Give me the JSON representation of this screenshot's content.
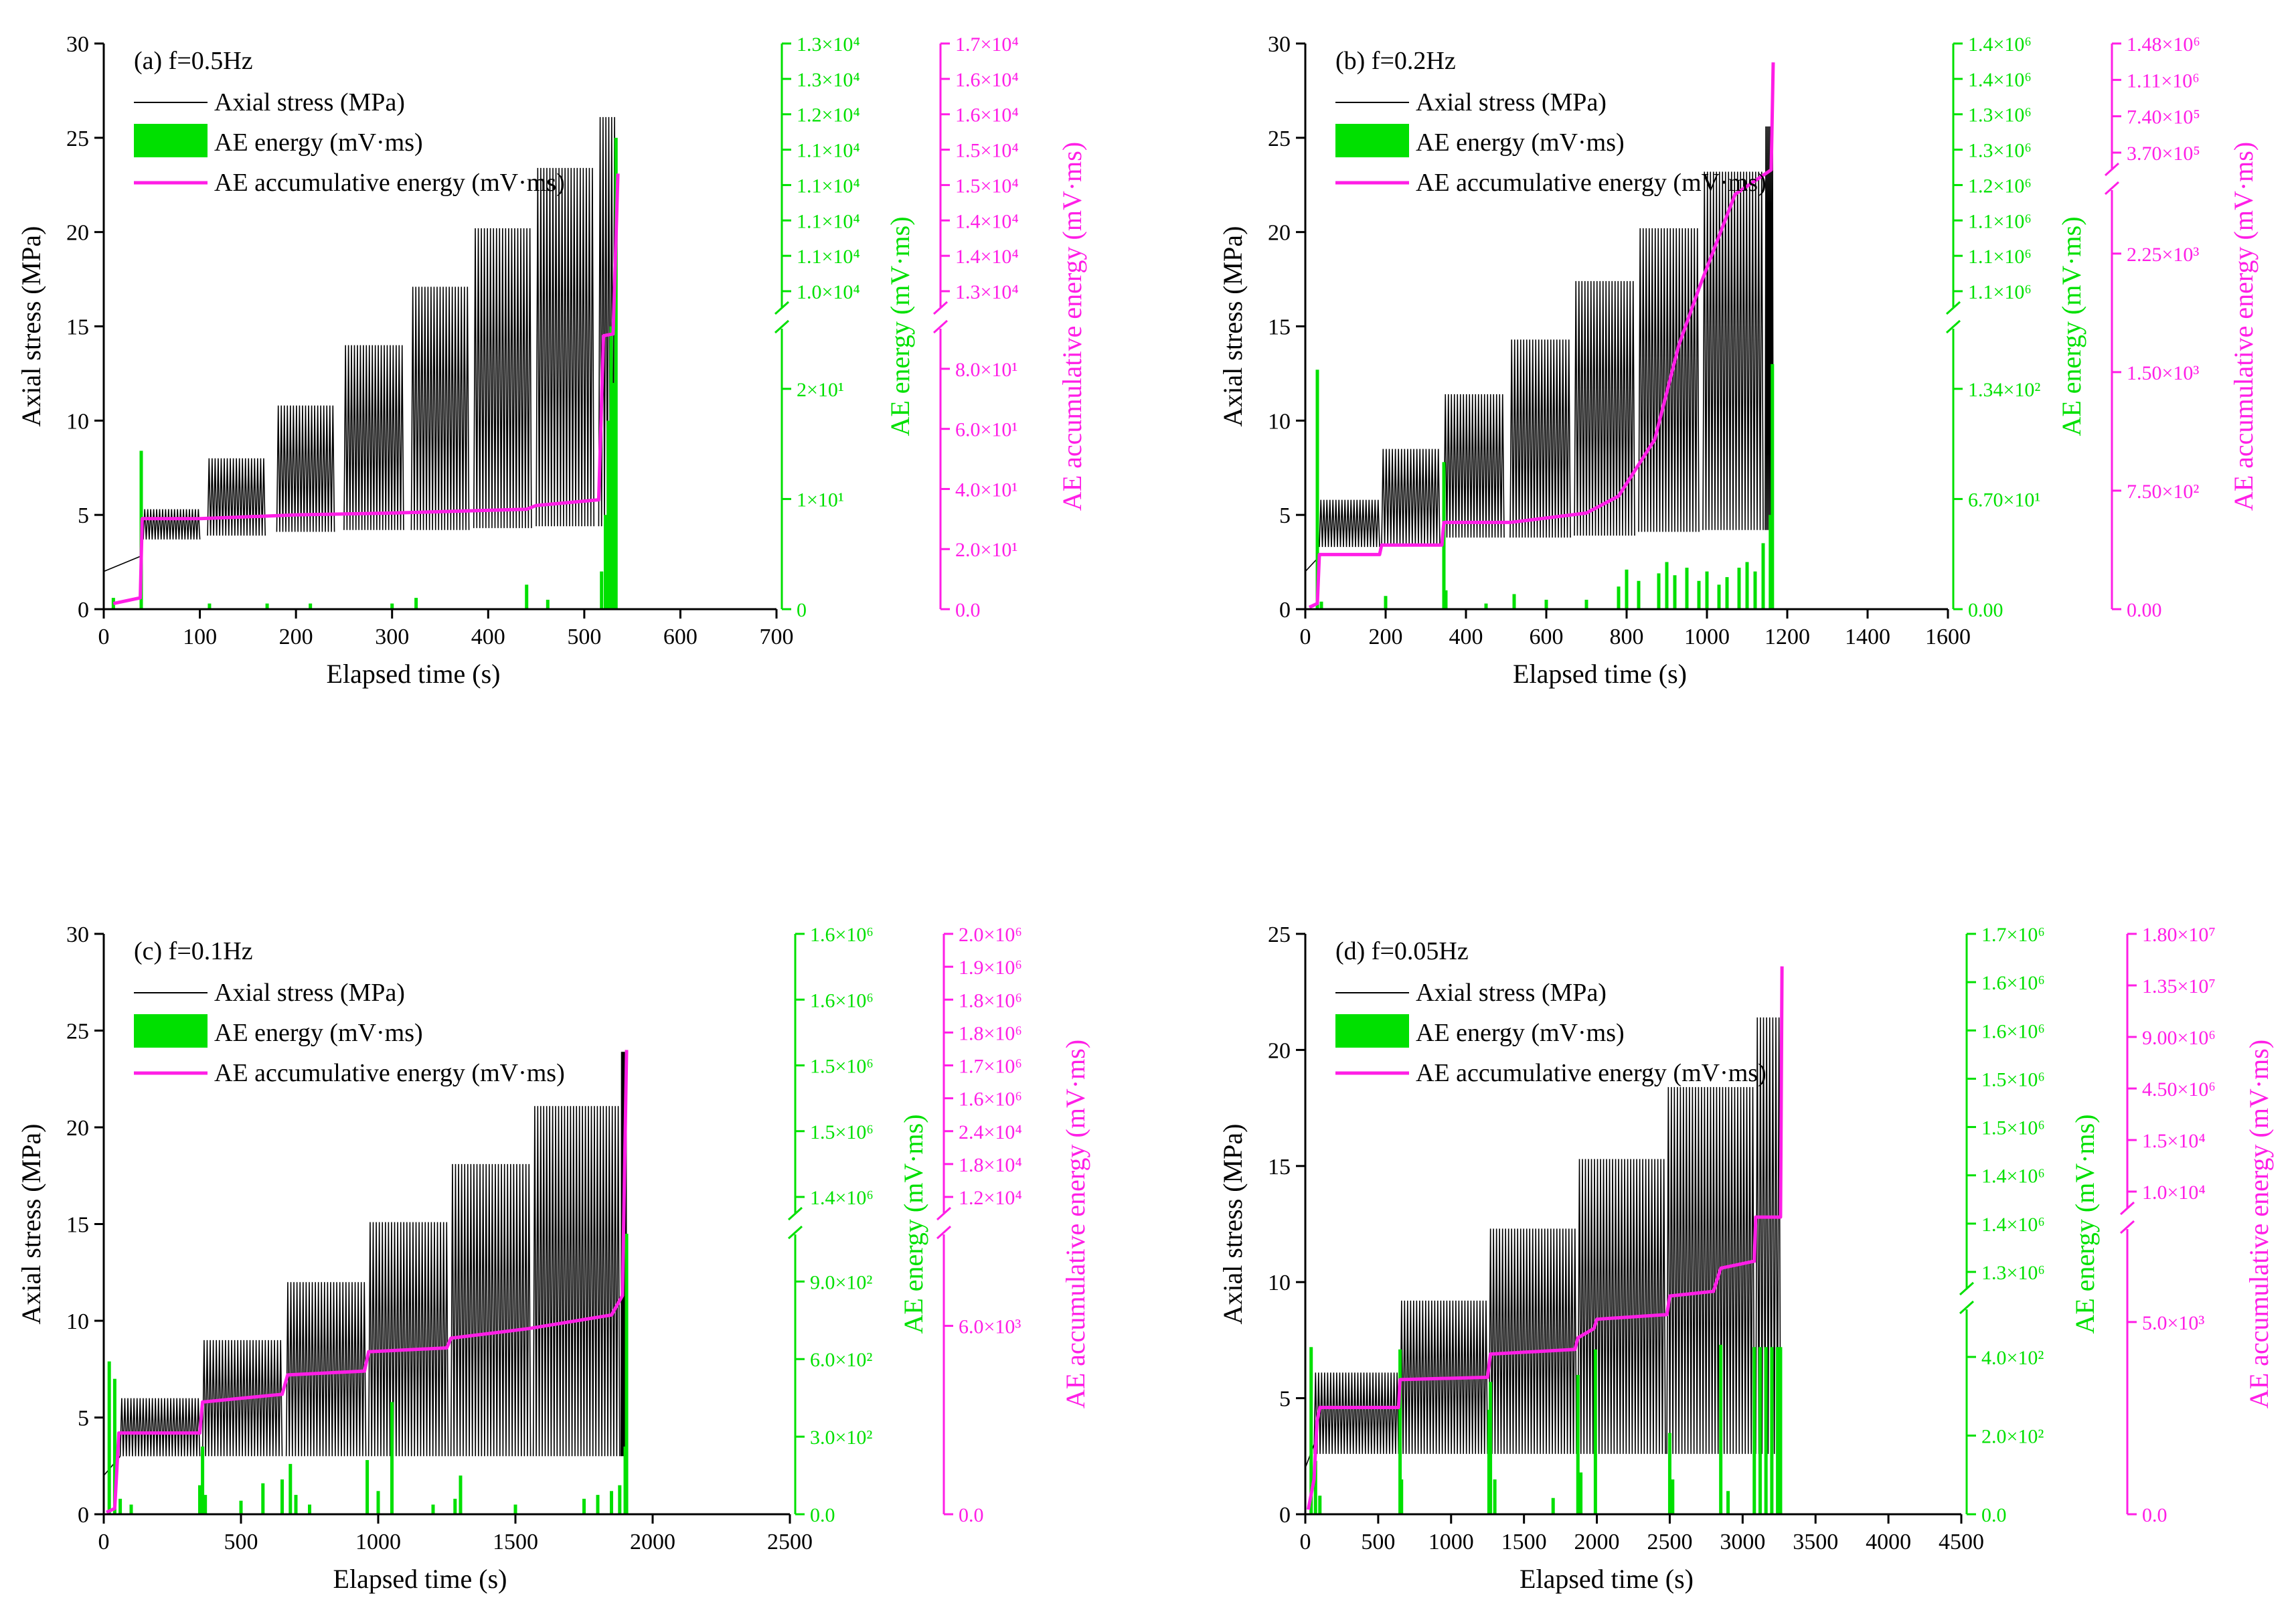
{
  "colors": {
    "stress": "#000000",
    "energy": "#00e000",
    "accum": "#ff1ee6"
  },
  "legend": {
    "stress": "Axial stress (MPa)",
    "energy": "AE energy (mV·ms)",
    "accum": "AE accumulative energy (mV·ms)"
  },
  "chart_data": [
    {
      "type": "line",
      "panel": "a",
      "title": "(a) f=0.5Hz",
      "xlabel": "Elapsed time (s)",
      "ylabel": "Axial stress (MPa)",
      "y2label": "AE energy (mV·ms)",
      "y3label": "AE accumulative energy (mV·ms)",
      "xlim": [
        0,
        700
      ],
      "xticks": [
        0,
        100,
        200,
        300,
        400,
        500,
        600,
        700
      ],
      "ylim": [
        0,
        30
      ],
      "yticks": [
        0,
        5,
        10,
        15,
        20,
        25,
        30
      ],
      "energy_ticks": [
        "0",
        "1×10¹",
        "2×10¹",
        "1.0×10⁴",
        "1.1×10⁴",
        "1.1×10⁴",
        "1.1×10⁴",
        "1.1×10⁴",
        "1.2×10⁴",
        "1.3×10⁴",
        "1.3×10⁴"
      ],
      "accum_ticks": [
        "0.0",
        "2.0×10¹",
        "4.0×10¹",
        "6.0×10¹",
        "8.0×10¹",
        "1.3×10⁴",
        "1.4×10⁴",
        "1.4×10⁴",
        "1.5×10⁴",
        "1.5×10⁴",
        "1.6×10⁴",
        "1.6×10⁴",
        "1.7×10⁴"
      ],
      "stress_stages": [
        {
          "t0": 0,
          "t1": 38,
          "min": 2.0,
          "max": 2.8
        },
        {
          "t0": 38,
          "t1": 100,
          "min": 3.7,
          "max": 5.3
        },
        {
          "t0": 108,
          "t1": 168,
          "min": 3.9,
          "max": 8.0
        },
        {
          "t0": 180,
          "t1": 240,
          "min": 4.1,
          "max": 10.8
        },
        {
          "t0": 250,
          "t1": 312,
          "min": 4.2,
          "max": 14.0
        },
        {
          "t0": 320,
          "t1": 380,
          "min": 4.2,
          "max": 17.1
        },
        {
          "t0": 385,
          "t1": 445,
          "min": 4.3,
          "max": 20.2
        },
        {
          "t0": 450,
          "t1": 510,
          "min": 4.4,
          "max": 23.4
        },
        {
          "t0": 515,
          "t1": 533,
          "min": 4.4,
          "max": 26.1
        }
      ],
      "stress_cycles": 8,
      "accum_curve": [
        [
          10,
          0.3
        ],
        [
          38,
          0.6
        ],
        [
          40,
          4.8
        ],
        [
          100,
          4.8
        ],
        [
          200,
          5.0
        ],
        [
          300,
          5.1
        ],
        [
          440,
          5.3
        ],
        [
          450,
          5.5
        ],
        [
          515,
          5.8
        ],
        [
          520,
          14.5
        ],
        [
          530,
          14.6
        ],
        [
          535,
          23.1
        ]
      ],
      "energy_spikes": [
        [
          10,
          0.6
        ],
        [
          39,
          8.4
        ],
        [
          110,
          0.3
        ],
        [
          170,
          0.3
        ],
        [
          215,
          0.3
        ],
        [
          300,
          0.3
        ],
        [
          325,
          0.6
        ],
        [
          440,
          1.3
        ],
        [
          462,
          0.5
        ],
        [
          518,
          2.0
        ],
        [
          522,
          5.0
        ],
        [
          525,
          10.0
        ],
        [
          528,
          15.0
        ],
        [
          530,
          12.0
        ],
        [
          533,
          25.0
        ]
      ]
    },
    {
      "type": "line",
      "panel": "b",
      "title": "(b) f=0.2Hz",
      "xlabel": "Elapsed time (s)",
      "ylabel": "Axial stress (MPa)",
      "y2label": "AE energy (mV·ms)",
      "y3label": "AE accumulative energy (mV·ms)",
      "xlim": [
        0,
        1600
      ],
      "xticks": [
        0,
        200,
        400,
        600,
        800,
        1000,
        1200,
        1400,
        1600
      ],
      "ylim": [
        0,
        30
      ],
      "yticks": [
        0,
        5,
        10,
        15,
        20,
        25,
        30
      ],
      "energy_ticks": [
        "0.00",
        "6.70×10¹",
        "1.34×10²",
        "1.1×10⁶",
        "1.1×10⁶",
        "1.1×10⁶",
        "1.2×10⁶",
        "1.3×10⁶",
        "1.3×10⁶",
        "1.4×10⁶",
        "1.4×10⁶"
      ],
      "accum_ticks": [
        "0.00",
        "7.50×10²",
        "1.50×10³",
        "2.25×10³",
        "3.70×10⁵",
        "7.40×10⁵",
        "1.11×10⁶",
        "1.48×10⁶"
      ],
      "stress_stages": [
        {
          "t0": 0,
          "t1": 35,
          "min": 2.0,
          "max": 2.8
        },
        {
          "t0": 35,
          "t1": 185,
          "min": 3.3,
          "max": 5.8
        },
        {
          "t0": 190,
          "t1": 335,
          "min": 3.4,
          "max": 8.5
        },
        {
          "t0": 345,
          "t1": 495,
          "min": 3.8,
          "max": 11.4
        },
        {
          "t0": 510,
          "t1": 660,
          "min": 3.8,
          "max": 14.3
        },
        {
          "t0": 670,
          "t1": 820,
          "min": 3.9,
          "max": 17.4
        },
        {
          "t0": 830,
          "t1": 980,
          "min": 4.1,
          "max": 20.2
        },
        {
          "t0": 990,
          "t1": 1140,
          "min": 4.2,
          "max": 23.2
        },
        {
          "t0": 1145,
          "t1": 1165,
          "min": 4.2,
          "max": 25.6
        }
      ],
      "stress_cycles": 14,
      "accum_curve": [
        [
          10,
          0.1
        ],
        [
          30,
          0.3
        ],
        [
          35,
          2.9
        ],
        [
          185,
          2.9
        ],
        [
          190,
          3.4
        ],
        [
          340,
          3.4
        ],
        [
          345,
          4.6
        ],
        [
          510,
          4.6
        ],
        [
          700,
          5.1
        ],
        [
          780,
          6.0
        ],
        [
          870,
          9.0
        ],
        [
          930,
          14.0
        ],
        [
          980,
          17.0
        ],
        [
          1070,
          22.0
        ],
        [
          1160,
          23.3
        ],
        [
          1165,
          29.0
        ]
      ],
      "energy_spikes": [
        [
          30,
          12.7
        ],
        [
          40,
          0.4
        ],
        [
          200,
          0.7
        ],
        [
          345,
          7.8
        ],
        [
          350,
          1.0
        ],
        [
          450,
          0.3
        ],
        [
          520,
          0.8
        ],
        [
          600,
          0.5
        ],
        [
          700,
          0.5
        ],
        [
          780,
          1.2
        ],
        [
          800,
          2.1
        ],
        [
          830,
          1.5
        ],
        [
          880,
          1.9
        ],
        [
          900,
          2.5
        ],
        [
          920,
          1.8
        ],
        [
          950,
          2.2
        ],
        [
          980,
          1.5
        ],
        [
          1000,
          2.0
        ],
        [
          1030,
          1.3
        ],
        [
          1050,
          1.7
        ],
        [
          1080,
          2.2
        ],
        [
          1100,
          2.5
        ],
        [
          1120,
          2.0
        ],
        [
          1140,
          3.5
        ],
        [
          1158,
          5.0
        ],
        [
          1163,
          13.0
        ]
      ]
    },
    {
      "type": "line",
      "panel": "c",
      "title": "(c) f=0.1Hz",
      "xlabel": "Elapsed time (s)",
      "ylabel": "Axial stress (MPa)",
      "y2label": "AE energy (mV·ms)",
      "y3label": "AE accumulative energy (mV·ms)",
      "xlim": [
        0,
        2500
      ],
      "xticks": [
        0,
        500,
        1000,
        1500,
        2000,
        2500
      ],
      "ylim": [
        0,
        30
      ],
      "yticks": [
        0,
        5,
        10,
        15,
        20,
        25,
        30
      ],
      "energy_ticks": [
        "0.0",
        "3.0×10²",
        "6.0×10²",
        "9.0×10²",
        "1.4×10⁶",
        "1.5×10⁶",
        "1.5×10⁶",
        "1.6×10⁶",
        "1.6×10⁶"
      ],
      "accum_ticks": [
        "0.0",
        "6.0×10³",
        "1.2×10⁴",
        "1.8×10⁴",
        "2.4×10⁴",
        "1.6×10⁶",
        "1.7×10⁶",
        "1.8×10⁶",
        "1.8×10⁶",
        "1.9×10⁶",
        "2.0×10⁶"
      ],
      "stress_stages": [
        {
          "t0": 0,
          "t1": 60,
          "min": 2.0,
          "max": 3.0
        },
        {
          "t0": 60,
          "t1": 350,
          "min": 3.0,
          "max": 6.0
        },
        {
          "t0": 360,
          "t1": 650,
          "min": 3.0,
          "max": 9.0
        },
        {
          "t0": 665,
          "t1": 955,
          "min": 3.0,
          "max": 12.0
        },
        {
          "t0": 965,
          "t1": 1255,
          "min": 3.0,
          "max": 15.1
        },
        {
          "t0": 1265,
          "t1": 1555,
          "min": 3.0,
          "max": 18.1
        },
        {
          "t0": 1565,
          "t1": 1880,
          "min": 3.0,
          "max": 21.1
        },
        {
          "t0": 1885,
          "t1": 1905,
          "min": 3.0,
          "max": 23.9
        }
      ],
      "stress_cycles": 24,
      "accum_curve": [
        [
          10,
          0.1
        ],
        [
          40,
          0.3
        ],
        [
          55,
          4.2
        ],
        [
          350,
          4.2
        ],
        [
          360,
          5.8
        ],
        [
          650,
          6.2
        ],
        [
          670,
          7.2
        ],
        [
          950,
          7.4
        ],
        [
          965,
          8.4
        ],
        [
          1250,
          8.6
        ],
        [
          1265,
          9.1
        ],
        [
          1550,
          9.6
        ],
        [
          1850,
          10.3
        ],
        [
          1890,
          11.3
        ],
        [
          1905,
          24.0
        ]
      ],
      "energy_spikes": [
        [
          20,
          7.9
        ],
        [
          40,
          7.0
        ],
        [
          60,
          0.8
        ],
        [
          100,
          0.5
        ],
        [
          350,
          1.5
        ],
        [
          360,
          3.5
        ],
        [
          370,
          1.0
        ],
        [
          500,
          0.7
        ],
        [
          580,
          1.6
        ],
        [
          650,
          1.8
        ],
        [
          680,
          2.6
        ],
        [
          700,
          1.0
        ],
        [
          750,
          0.5
        ],
        [
          960,
          2.8
        ],
        [
          1000,
          1.2
        ],
        [
          1050,
          5.8
        ],
        [
          1200,
          0.5
        ],
        [
          1280,
          0.8
        ],
        [
          1300,
          2.0
        ],
        [
          1500,
          0.5
        ],
        [
          1750,
          0.8
        ],
        [
          1800,
          1.0
        ],
        [
          1850,
          1.2
        ],
        [
          1880,
          1.5
        ],
        [
          1900,
          3.5
        ],
        [
          1905,
          14.5
        ]
      ]
    },
    {
      "type": "line",
      "panel": "d",
      "title": "(d) f=0.05Hz",
      "xlabel": "Elapsed time (s)",
      "ylabel": "Axial stress (MPa)",
      "y2label": "AE energy (mV·ms)",
      "y3label": "AE accumulative energy (mV·ms)",
      "xlim": [
        0,
        4500
      ],
      "xticks": [
        0,
        500,
        1000,
        1500,
        2000,
        2500,
        3000,
        3500,
        4000,
        4500
      ],
      "ylim": [
        0,
        25
      ],
      "yticks": [
        0,
        5,
        10,
        15,
        20,
        25
      ],
      "energy_ticks": [
        "0.0",
        "2.0×10²",
        "4.0×10²",
        "1.3×10⁶",
        "1.4×10⁶",
        "1.4×10⁶",
        "1.5×10⁶",
        "1.5×10⁶",
        "1.6×10⁶",
        "1.6×10⁶",
        "1.7×10⁶"
      ],
      "accum_ticks": [
        "0.0",
        "5.0×10³",
        "1.0×10⁴",
        "1.5×10⁴",
        "4.50×10⁶",
        "9.00×10⁶",
        "1.35×10⁷",
        "1.80×10⁷"
      ],
      "stress_stages": [
        {
          "t0": 0,
          "t1": 60,
          "min": 2.0,
          "max": 3.0
        },
        {
          "t0": 60,
          "t1": 640,
          "min": 2.6,
          "max": 6.1
        },
        {
          "t0": 650,
          "t1": 1250,
          "min": 2.6,
          "max": 9.2
        },
        {
          "t0": 1260,
          "t1": 1860,
          "min": 2.6,
          "max": 12.3
        },
        {
          "t0": 1870,
          "t1": 2470,
          "min": 2.6,
          "max": 15.3
        },
        {
          "t0": 2480,
          "t1": 3080,
          "min": 2.6,
          "max": 18.4
        },
        {
          "t0": 3090,
          "t1": 3260,
          "min": 2.6,
          "max": 21.4
        }
      ],
      "stress_cycles": 28,
      "accum_curve": [
        [
          20,
          0.2
        ],
        [
          60,
          1.5
        ],
        [
          80,
          4.0
        ],
        [
          100,
          4.6
        ],
        [
          640,
          4.6
        ],
        [
          650,
          5.8
        ],
        [
          1250,
          5.9
        ],
        [
          1270,
          6.9
        ],
        [
          1850,
          7.1
        ],
        [
          1870,
          7.6
        ],
        [
          1980,
          8.0
        ],
        [
          2000,
          8.4
        ],
        [
          2480,
          8.6
        ],
        [
          2500,
          9.4
        ],
        [
          2800,
          9.6
        ],
        [
          2850,
          10.6
        ],
        [
          3080,
          10.9
        ],
        [
          3090,
          12.8
        ],
        [
          3260,
          12.8
        ],
        [
          3270,
          23.6
        ]
      ],
      "energy_spikes": [
        [
          40,
          7.2
        ],
        [
          70,
          2.3
        ],
        [
          100,
          0.8
        ],
        [
          650,
          7.1
        ],
        [
          660,
          1.5
        ],
        [
          1260,
          4.5
        ],
        [
          1270,
          5.7
        ],
        [
          1300,
          1.5
        ],
        [
          1700,
          0.7
        ],
        [
          1870,
          6.0
        ],
        [
          1890,
          1.8
        ],
        [
          1990,
          7.1
        ],
        [
          2500,
          3.5
        ],
        [
          2520,
          1.5
        ],
        [
          2850,
          7.3
        ],
        [
          2900,
          1.0
        ],
        [
          3080,
          7.2
        ],
        [
          3120,
          7.2
        ],
        [
          3160,
          7.2
        ],
        [
          3200,
          7.2
        ],
        [
          3240,
          7.2
        ],
        [
          3260,
          7.2
        ]
      ]
    }
  ]
}
